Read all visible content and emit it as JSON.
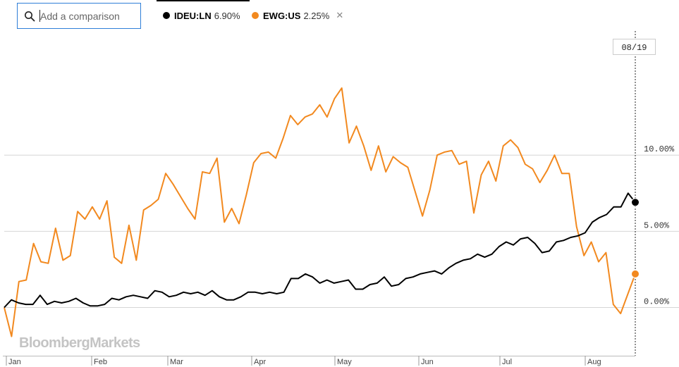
{
  "search": {
    "placeholder": "Add a comparison"
  },
  "legend": [
    {
      "ticker": "IDEU:LN",
      "value": "6.90%",
      "color": "#000000"
    },
    {
      "ticker": "EWG:US",
      "value": "2.25%",
      "color": "#f2891f",
      "removable": true
    }
  ],
  "watermark": "BloombergMarkets",
  "chart_data": {
    "type": "line",
    "title": "",
    "xlabel": "",
    "ylabel": "",
    "x_tick_labels": [
      "Jan",
      "Feb",
      "Mar",
      "Apr",
      "May",
      "Jun",
      "Jul",
      "Aug"
    ],
    "y_tick_labels": [
      "0.00%",
      "5.00%",
      "10.00%"
    ],
    "y_ticks": [
      0,
      5,
      10
    ],
    "ylim": [
      -3.4,
      17.5
    ],
    "grid": true,
    "crosshair_date": "08/19",
    "series": [
      {
        "name": "IDEU:LN",
        "color": "#000000",
        "end_value": 6.9,
        "values": [
          0.0,
          0.5,
          0.3,
          0.2,
          0.2,
          0.8,
          0.2,
          0.4,
          0.3,
          0.4,
          0.6,
          0.3,
          0.1,
          0.1,
          0.2,
          0.6,
          0.5,
          0.7,
          0.8,
          0.7,
          0.6,
          1.1,
          1.0,
          0.7,
          0.8,
          1.0,
          0.9,
          1.0,
          0.8,
          1.1,
          0.7,
          0.5,
          0.5,
          0.7,
          1.0,
          1.0,
          0.9,
          1.0,
          0.9,
          1.0,
          1.9,
          1.9,
          2.2,
          2.0,
          1.6,
          1.8,
          1.6,
          1.7,
          1.8,
          1.2,
          1.2,
          1.5,
          1.6,
          2.0,
          1.4,
          1.5,
          1.9,
          2.0,
          2.2,
          2.3,
          2.4,
          2.2,
          2.6,
          2.9,
          3.1,
          3.2,
          3.5,
          3.3,
          3.5,
          4.0,
          4.3,
          4.1,
          4.5,
          4.6,
          4.2,
          3.6,
          3.7,
          4.3,
          4.4,
          4.6,
          4.7,
          4.9,
          5.6,
          5.9,
          6.1,
          6.6,
          6.6,
          7.5,
          6.9
        ]
      },
      {
        "name": "EWG:US",
        "color": "#f2891f",
        "end_value": 2.25,
        "values": [
          0.0,
          -1.9,
          1.7,
          1.8,
          4.2,
          3.0,
          2.9,
          5.2,
          3.1,
          3.4,
          6.3,
          5.8,
          6.6,
          5.8,
          7.0,
          3.3,
          2.9,
          5.4,
          3.1,
          6.4,
          6.7,
          7.1,
          8.8,
          8.1,
          7.3,
          6.5,
          5.8,
          8.9,
          8.8,
          9.8,
          5.6,
          6.5,
          5.5,
          7.4,
          9.5,
          10.1,
          10.2,
          9.8,
          11.1,
          12.6,
          12.0,
          12.5,
          12.7,
          13.3,
          12.5,
          13.7,
          14.4,
          10.8,
          11.9,
          10.6,
          9.0,
          10.6,
          8.9,
          9.9,
          9.5,
          9.2,
          7.6,
          6.0,
          7.7,
          10.0,
          10.2,
          10.3,
          9.4,
          9.6,
          6.2,
          8.7,
          9.6,
          8.3,
          10.6,
          11.0,
          10.5,
          9.4,
          9.1,
          8.2,
          9.0,
          10.0,
          8.8,
          8.8,
          5.3,
          3.4,
          4.3,
          3.0,
          3.6,
          0.2,
          -0.4,
          0.9,
          2.2
        ]
      }
    ]
  }
}
